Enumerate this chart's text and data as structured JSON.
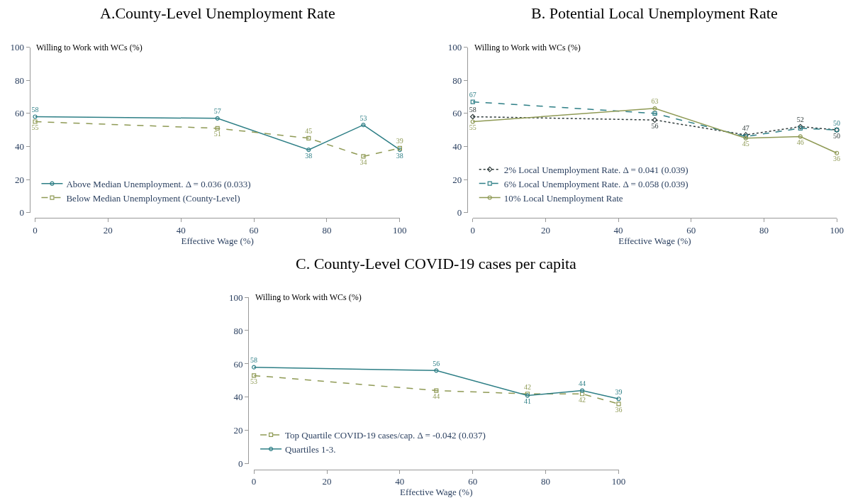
{
  "chart_data": [
    {
      "type": "line",
      "title": "A.County-Level Unemployment Rate",
      "xlabel": "Effective Wage (%)",
      "ylabel": "Willing to Work with WCs (%)",
      "x": [
        0,
        50,
        75,
        90,
        100
      ],
      "xlim": [
        0,
        100
      ],
      "xticks": [
        0,
        20,
        40,
        60,
        80,
        100
      ],
      "ylim": [
        0,
        100
      ],
      "yticks": [
        0,
        20,
        40,
        60,
        80,
        100
      ],
      "legend": "bottom left",
      "data_labels": true,
      "series": [
        {
          "name": "Above Median Unemployment. Δ = 0.036 (0.033)",
          "color": "#2e7f86",
          "values": [
            58,
            57,
            38,
            53,
            38
          ],
          "line_style": "solid",
          "marker": "circle"
        },
        {
          "name": "Below Median Unemployment (County-Level)",
          "color": "#8f9a55",
          "values": [
            55,
            51,
            45,
            34,
            39
          ],
          "line_style": "dashed",
          "marker": "square"
        }
      ]
    },
    {
      "type": "line",
      "title": "B. Potential Local Unemployment Rate",
      "xlabel": "Effective Wage (%)",
      "ylabel": "Willing to Work with WCs (%)",
      "x": [
        0,
        50,
        75,
        90,
        100
      ],
      "xlim": [
        0,
        100
      ],
      "xticks": [
        0,
        20,
        40,
        60,
        80,
        100
      ],
      "ylim": [
        0,
        100
      ],
      "yticks": [
        0,
        20,
        40,
        60,
        80,
        100
      ],
      "legend": "bottom left",
      "series": [
        {
          "name": "2% Local Unemployment Rate. Δ = 0.041 (0.039)",
          "color": "#2f3b3b",
          "values": [
            58,
            56,
            47,
            52,
            50
          ],
          "value_labels": [
            "58",
            "56",
            "47",
            "52",
            "50"
          ],
          "line_style": "dotted",
          "marker": "diamond"
        },
        {
          "name": "6% Local Unemployment Rate. Δ = 0.058 (0.039)",
          "color": "#2e7f86",
          "values": [
            67,
            60,
            46,
            51,
            50
          ],
          "value_labels": [
            "67",
            null,
            null,
            null,
            "50"
          ],
          "line_style": "dashed",
          "marker": "square"
        },
        {
          "name": "10% Local Unemployment Rate",
          "color": "#8f9a55",
          "values": [
            55,
            63,
            45,
            46,
            36
          ],
          "value_labels": [
            "55",
            "63",
            "45",
            "46",
            "36"
          ],
          "line_style": "solid",
          "marker": "circle"
        }
      ]
    },
    {
      "type": "line",
      "title": "C. County-Level COVID-19 cases per capita",
      "xlabel": "Effective Wage (%)",
      "ylabel": "Willing to Work with WCs (%)",
      "x": [
        0,
        50,
        75,
        90,
        100
      ],
      "xlim": [
        0,
        100
      ],
      "xticks": [
        0,
        20,
        40,
        60,
        80,
        100
      ],
      "ylim": [
        0,
        100
      ],
      "yticks": [
        0,
        20,
        40,
        60,
        80,
        100
      ],
      "legend": "bottom left",
      "data_labels": true,
      "series": [
        {
          "name": "Top Quartile COVID-19 cases/cap. Δ = -0.042 (0.037)",
          "color": "#8f9a55",
          "values": [
            53,
            44,
            42,
            42,
            36
          ],
          "line_style": "dashed",
          "marker": "square"
        },
        {
          "name": "Quartiles 1-3.",
          "color": "#2e7f86",
          "values": [
            58,
            56,
            41,
            44,
            39
          ],
          "line_style": "solid",
          "marker": "circle"
        }
      ]
    }
  ]
}
